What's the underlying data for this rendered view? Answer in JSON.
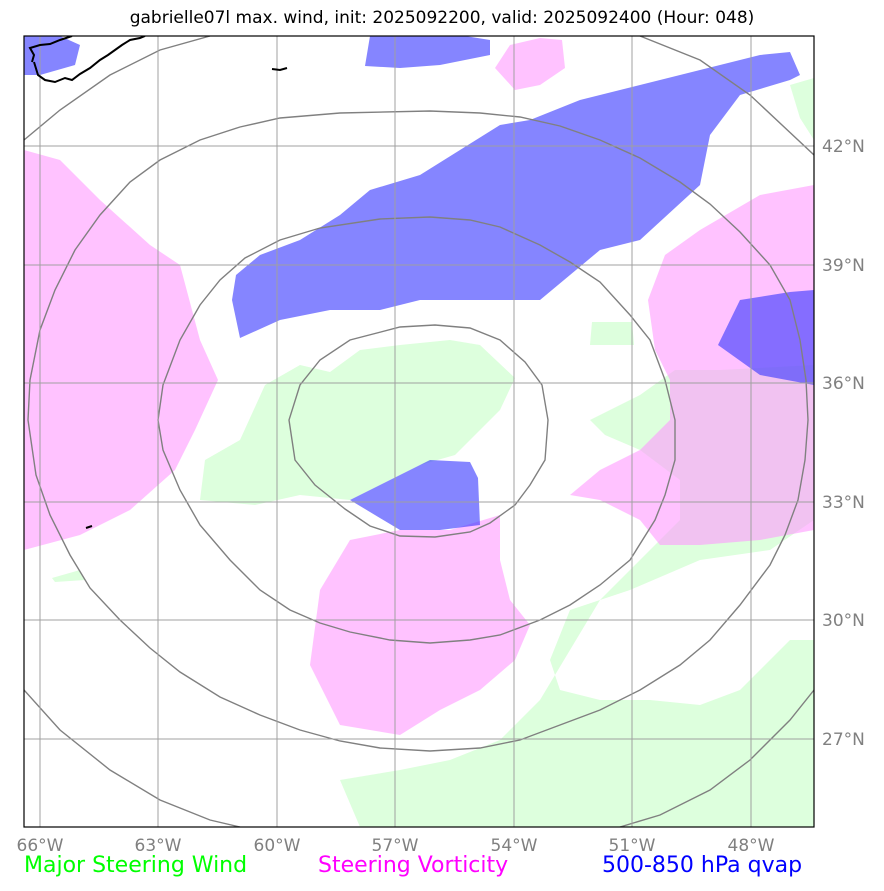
{
  "title": "gabrielle07l max. wind, init: 2025092200, valid: 2025092400 (Hour: 048)",
  "colors": {
    "steering_wind": "#00ff00",
    "steering_vorticity": "#ff00ff",
    "qvap": "#0000ff",
    "grid": "#a0a0a0",
    "range_rings": "#808080",
    "coast": "#000000",
    "tick_labels": "#808080"
  },
  "map": {
    "lon_labels": [
      "66°W",
      "63°W",
      "60°W",
      "57°W",
      "54°W",
      "51°W",
      "48°W"
    ],
    "lat_labels": [
      "42°N",
      "39°N",
      "36°N",
      "33°N",
      "30°N",
      "27°N"
    ]
  },
  "legend": {
    "steering_wind": "Major Steering Wind",
    "steering_vorticity": "Steering Vorticity",
    "qvap": "500-850 hPa qvap"
  }
}
